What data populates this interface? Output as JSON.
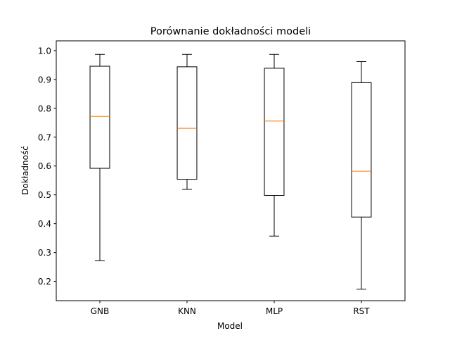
{
  "chart_data": {
    "type": "boxplot",
    "title": "Porównanie dokładności modeli",
    "xlabel": "Model",
    "ylabel": "Dokładność",
    "ylim": [
      0.133,
      1.034
    ],
    "yticks": [
      0.2,
      0.3,
      0.4,
      0.5,
      0.6,
      0.7,
      0.8,
      0.9,
      1.0
    ],
    "ytick_labels": [
      "0.2",
      "0.3",
      "0.4",
      "0.5",
      "0.6",
      "0.7",
      "0.8",
      "0.9",
      "1.0"
    ],
    "grid": false,
    "categories": [
      "GNB",
      "KNN",
      "MLP",
      "RST"
    ],
    "boxes": [
      {
        "category": "GNB",
        "whisker_low": 0.272,
        "q1": 0.592,
        "median": 0.772,
        "q3": 0.946,
        "whisker_high": 0.987
      },
      {
        "category": "KNN",
        "whisker_low": 0.519,
        "q1": 0.554,
        "median": 0.731,
        "q3": 0.944,
        "whisker_high": 0.987
      },
      {
        "category": "MLP",
        "whisker_low": 0.357,
        "q1": 0.498,
        "median": 0.756,
        "q3": 0.939,
        "whisker_high": 0.987
      },
      {
        "category": "RST",
        "whisker_low": 0.173,
        "q1": 0.423,
        "median": 0.582,
        "q3": 0.889,
        "whisker_high": 0.962
      }
    ],
    "colors": {
      "box": "#000000",
      "median": "#ff7f0e"
    }
  }
}
